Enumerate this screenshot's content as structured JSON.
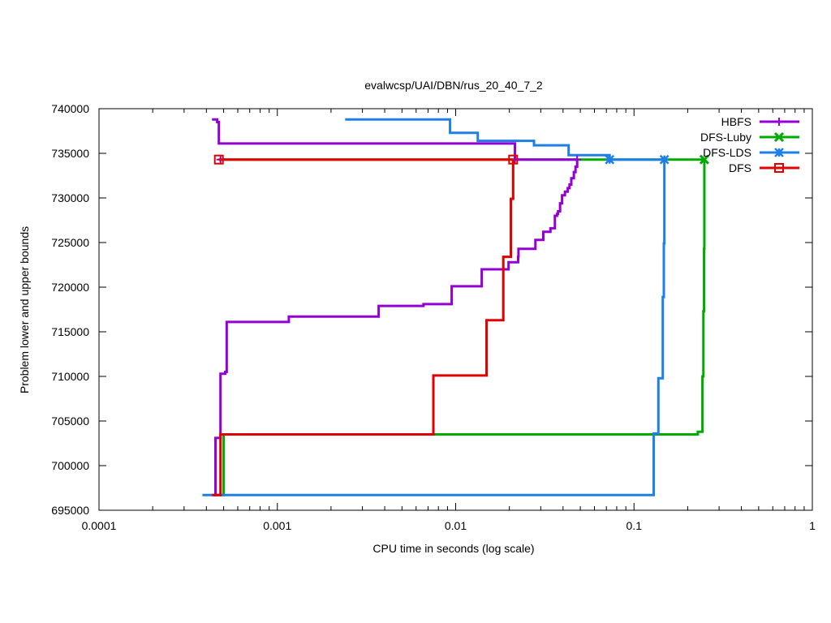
{
  "chart_data": {
    "type": "line",
    "title": "evalwcsp/UAI/DBN/rus_20_40_7_2",
    "xlabel": "CPU time in seconds (log scale)",
    "ylabel": "Problem lower and upper bounds",
    "xscale": "log",
    "xlim": [
      0.0001,
      1
    ],
    "ylim": [
      695000,
      740000
    ],
    "x_ticks": [
      0.0001,
      0.001,
      0.01,
      0.1,
      1
    ],
    "x_tick_labels": [
      "0.0001",
      "0.001",
      "0.01",
      "0.1",
      "1"
    ],
    "y_ticks": [
      695000,
      700000,
      705000,
      710000,
      715000,
      720000,
      725000,
      730000,
      735000,
      740000
    ],
    "y_tick_labels": [
      "695000",
      "700000",
      "705000",
      "710000",
      "715000",
      "720000",
      "725000",
      "730000",
      "735000",
      "740000"
    ],
    "grid": false,
    "legend_position": "top-right",
    "series": [
      {
        "name": "HBFS",
        "color": "#9400d3",
        "marker": "plus",
        "lower_bound": [
          [
            0.00044,
            696700
          ],
          [
            0.00045,
            703100
          ],
          [
            0.00048,
            703100
          ],
          [
            0.00048,
            710300
          ],
          [
            0.0005,
            710300
          ],
          [
            0.00051,
            710500
          ],
          [
            0.00052,
            716100
          ],
          [
            0.00115,
            716100
          ],
          [
            0.00116,
            716700
          ],
          [
            0.0036,
            716700
          ],
          [
            0.0037,
            717900
          ],
          [
            0.0065,
            717900
          ],
          [
            0.0066,
            718100
          ],
          [
            0.0094,
            718100
          ],
          [
            0.0095,
            720100
          ],
          [
            0.0138,
            720100
          ],
          [
            0.014,
            722000
          ],
          [
            0.0197,
            722000
          ],
          [
            0.0198,
            722800
          ],
          [
            0.0222,
            722800
          ],
          [
            0.0224,
            723400
          ],
          [
            0.0225,
            724300
          ],
          [
            0.0275,
            724300
          ],
          [
            0.028,
            725300
          ],
          [
            0.0305,
            725300
          ],
          [
            0.031,
            726200
          ],
          [
            0.0335,
            726200
          ],
          [
            0.034,
            726600
          ],
          [
            0.0358,
            726600
          ],
          [
            0.036,
            728000
          ],
          [
            0.037,
            728200
          ],
          [
            0.0375,
            728500
          ],
          [
            0.0385,
            729400
          ],
          [
            0.0395,
            730300
          ],
          [
            0.041,
            730700
          ],
          [
            0.0425,
            731100
          ],
          [
            0.0435,
            731500
          ],
          [
            0.0445,
            732200
          ],
          [
            0.046,
            732900
          ],
          [
            0.047,
            733500
          ],
          [
            0.048,
            734300
          ]
        ],
        "upper_bound": [
          [
            0.00043,
            738800
          ],
          [
            0.00046,
            738800
          ],
          [
            0.00046,
            738500
          ],
          [
            0.00047,
            738500
          ],
          [
            0.00047,
            736100
          ],
          [
            0.0215,
            736100
          ],
          [
            0.0215,
            734300
          ],
          [
            0.048,
            734300
          ]
        ],
        "markers": [
          [
            0.00048,
            734300
          ],
          [
            0.0215,
            734300
          ],
          [
            0.048,
            734300
          ]
        ]
      },
      {
        "name": "DFS-Luby",
        "color": "#00aa00",
        "marker": "cross",
        "lower_bound": [
          [
            0.00045,
            696700
          ],
          [
            0.00049,
            696700
          ],
          [
            0.0005,
            703500
          ],
          [
            0.225,
            703500
          ],
          [
            0.228,
            703800
          ],
          [
            0.24,
            703800
          ],
          [
            0.242,
            710000
          ],
          [
            0.244,
            710000
          ],
          [
            0.245,
            717300
          ],
          [
            0.246,
            717300
          ],
          [
            0.247,
            724300
          ],
          [
            0.248,
            734300
          ]
        ],
        "upper_bound": [
          [
            0.00047,
            734300
          ],
          [
            0.248,
            734300
          ]
        ],
        "markers": [
          [
            0.248,
            734300
          ]
        ]
      },
      {
        "name": "DFS-LDS",
        "color": "#1e7fe6",
        "marker": "star",
        "lower_bound": [
          [
            0.00038,
            696700
          ],
          [
            0.128,
            696700
          ],
          [
            0.129,
            703600
          ],
          [
            0.136,
            703600
          ],
          [
            0.137,
            709800
          ],
          [
            0.144,
            709800
          ],
          [
            0.145,
            718900
          ],
          [
            0.146,
            718900
          ],
          [
            0.147,
            724900
          ],
          [
            0.148,
            734300
          ]
        ],
        "upper_bound": [
          [
            0.0024,
            738800
          ],
          [
            0.0093,
            738800
          ],
          [
            0.0093,
            737300
          ],
          [
            0.0133,
            737300
          ],
          [
            0.0133,
            736400
          ],
          [
            0.0275,
            736400
          ],
          [
            0.0275,
            735900
          ],
          [
            0.043,
            735900
          ],
          [
            0.043,
            734800
          ],
          [
            0.073,
            734800
          ],
          [
            0.073,
            734300
          ],
          [
            0.148,
            734300
          ]
        ],
        "markers": [
          [
            0.073,
            734300
          ],
          [
            0.148,
            734300
          ]
        ]
      },
      {
        "name": "DFS",
        "color": "#e00000",
        "marker": "square",
        "lower_bound": [
          [
            0.00043,
            696700
          ],
          [
            0.00048,
            696700
          ],
          [
            0.00048,
            703500
          ],
          [
            0.0075,
            703500
          ],
          [
            0.0075,
            710100
          ],
          [
            0.0149,
            710100
          ],
          [
            0.0149,
            716300
          ],
          [
            0.0184,
            716300
          ],
          [
            0.0185,
            723400
          ],
          [
            0.0203,
            723400
          ],
          [
            0.0204,
            729900
          ],
          [
            0.0209,
            729900
          ],
          [
            0.021,
            734300
          ]
        ],
        "upper_bound": [
          [
            0.00047,
            734300
          ],
          [
            0.021,
            734300
          ]
        ],
        "markers": [
          [
            0.00047,
            734300
          ],
          [
            0.021,
            734300
          ]
        ]
      }
    ]
  }
}
